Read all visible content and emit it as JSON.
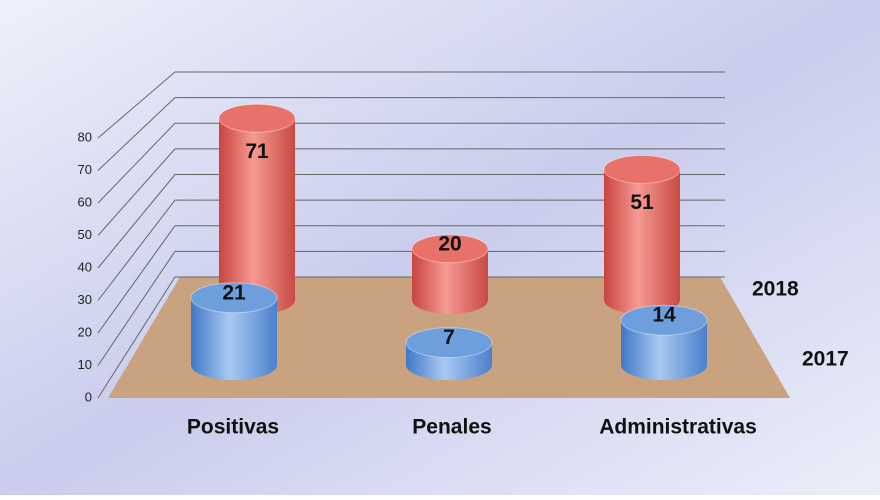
{
  "chart_data": {
    "type": "bar",
    "categories": [
      "Positivas",
      "Penales",
      "Administrativas"
    ],
    "series": [
      {
        "name": "2018",
        "color": "#e8716a",
        "values": [
          71,
          20,
          51
        ]
      },
      {
        "name": "2017",
        "color": "#6e9fdc",
        "values": [
          21,
          7,
          14
        ]
      }
    ],
    "ylim": [
      0,
      80
    ],
    "yticks": [
      0,
      10,
      20,
      30,
      40,
      50,
      60,
      70,
      80
    ],
    "grid": true
  }
}
